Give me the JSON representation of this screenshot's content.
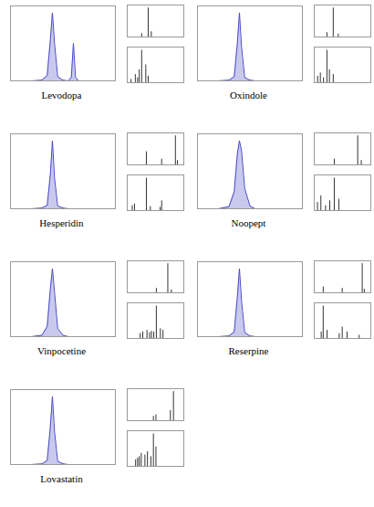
{
  "chart_data": [
    {
      "type": "line",
      "title": "Levodopa",
      "x": [
        0,
        1,
        2,
        3,
        3.5,
        3.8,
        4,
        4.2,
        4.5,
        5,
        5.5,
        5.8,
        6,
        6.2,
        6.5,
        7,
        8,
        9,
        10
      ],
      "values": [
        0,
        0,
        0,
        1,
        8,
        60,
        100,
        55,
        6,
        1,
        0,
        5,
        55,
        5,
        0,
        0,
        0,
        0,
        0
      ],
      "xlim": [
        0,
        10
      ],
      "ylim": [
        0,
        110
      ],
      "color": "#4b4bc8",
      "tick_labels": false
    },
    {
      "type": "bar",
      "x": [
        152,
        198,
        220
      ],
      "values": [
        12,
        100,
        18
      ],
      "xlim": [
        50,
        450
      ],
      "ylim": [
        0,
        110
      ],
      "color": "#333333",
      "tick_labels": false
    },
    {
      "type": "bar",
      "x": [
        77,
        107,
        123,
        135,
        152,
        181,
        198
      ],
      "values": [
        10,
        25,
        15,
        40,
        100,
        55,
        20
      ],
      "xlim": [
        50,
        450
      ],
      "ylim": [
        0,
        110
      ],
      "color": "#333333",
      "tick_labels": false
    },
    {
      "type": "line",
      "title": "Oxindole",
      "x": [
        0,
        1,
        2,
        3,
        3.5,
        3.8,
        4,
        4.2,
        4.5,
        5,
        5.5,
        5.8,
        6,
        6.2,
        6.5,
        7,
        8,
        9,
        10
      ],
      "values": [
        0,
        0,
        0,
        1,
        6,
        55,
        100,
        50,
        5,
        1,
        0,
        0,
        0,
        0,
        0,
        0,
        0,
        0,
        0
      ],
      "xlim": [
        0,
        10
      ],
      "ylim": [
        0,
        110
      ],
      "color": "#4b4bc8",
      "tick_labels": false
    },
    {
      "type": "bar",
      "x": [
        106,
        134,
        156
      ],
      "values": [
        15,
        100,
        10
      ],
      "xlim": [
        50,
        300
      ],
      "ylim": [
        0,
        110
      ],
      "color": "#333333",
      "tick_labels": false
    },
    {
      "type": "bar",
      "x": [
        65,
        77,
        91,
        106,
        117,
        134
      ],
      "values": [
        20,
        30,
        15,
        100,
        40,
        25
      ],
      "xlim": [
        50,
        300
      ],
      "ylim": [
        0,
        110
      ],
      "color": "#333333",
      "tick_labels": false
    },
    {
      "type": "line",
      "title": "Hesperidin",
      "x": [
        0,
        1,
        2,
        3,
        3.5,
        3.8,
        4,
        4.2,
        4.5,
        5,
        5.5,
        5.8,
        6,
        6.2,
        6.5,
        7,
        8,
        9,
        10
      ],
      "values": [
        0,
        0,
        0,
        1,
        5,
        50,
        100,
        45,
        4,
        1,
        0,
        0,
        0,
        0,
        0,
        0,
        0,
        0,
        0
      ],
      "xlim": [
        0,
        10
      ],
      "ylim": [
        0,
        110
      ],
      "color": "#4b4bc8",
      "tick_labels": false
    },
    {
      "type": "bar",
      "x": [
        303,
        465,
        611,
        633
      ],
      "values": [
        45,
        20,
        100,
        15
      ],
      "xlim": [
        100,
        700
      ],
      "ylim": [
        0,
        110
      ],
      "color": "#333333",
      "tick_labels": false
    },
    {
      "type": "bar",
      "x": [
        153,
        177,
        303,
        345,
        449,
        465
      ],
      "values": [
        15,
        20,
        100,
        12,
        10,
        30
      ],
      "xlim": [
        100,
        700
      ],
      "ylim": [
        0,
        110
      ],
      "color": "#333333",
      "tick_labels": false
    },
    {
      "type": "line",
      "title": "Noopept",
      "x": [
        0,
        1,
        2,
        3,
        3.5,
        3.8,
        4,
        4.2,
        4.5,
        5,
        5.5,
        5.8,
        6,
        6.2,
        6.5,
        7,
        8,
        9,
        10
      ],
      "values": [
        0,
        0,
        0,
        3,
        25,
        80,
        100,
        85,
        30,
        4,
        0,
        0,
        0,
        0,
        0,
        0,
        0,
        0,
        0
      ],
      "xlim": [
        0,
        10
      ],
      "ylim": [
        0,
        110
      ],
      "color": "#4b4bc8",
      "tick_labels": false
    },
    {
      "type": "bar",
      "x": [
        174,
        319,
        341
      ],
      "values": [
        20,
        100,
        15
      ],
      "xlim": [
        50,
        400
      ],
      "ylim": [
        0,
        110
      ],
      "color": "#333333",
      "tick_labels": false
    },
    {
      "type": "bar",
      "x": [
        70,
        91,
        120,
        146,
        174,
        202
      ],
      "values": [
        25,
        45,
        15,
        30,
        100,
        35
      ],
      "xlim": [
        50,
        400
      ],
      "ylim": [
        0,
        110
      ],
      "color": "#333333",
      "tick_labels": false
    },
    {
      "type": "line",
      "title": "Vinpocetine",
      "x": [
        0,
        1,
        2,
        3,
        3.5,
        3.8,
        4,
        4.2,
        4.5,
        5,
        5.5,
        5.8,
        6,
        6.2,
        6.5,
        7,
        8,
        9,
        10
      ],
      "values": [
        0,
        0,
        0,
        2,
        15,
        70,
        100,
        65,
        12,
        2,
        0,
        0,
        0,
        0,
        0,
        0,
        0,
        0,
        0
      ],
      "xlim": [
        0,
        10
      ],
      "ylim": [
        0,
        110
      ],
      "color": "#4b4bc8",
      "tick_labels": false
    },
    {
      "type": "bar",
      "x": [
        280,
        351,
        373
      ],
      "values": [
        15,
        100,
        10
      ],
      "xlim": [
        100,
        450
      ],
      "ylim": [
        0,
        110
      ],
      "color": "#333333",
      "tick_labels": false
    },
    {
      "type": "bar",
      "x": [
        180,
        196,
        222,
        238,
        250,
        264,
        280,
        305,
        321
      ],
      "values": [
        15,
        20,
        25,
        18,
        22,
        20,
        100,
        30,
        25
      ],
      "xlim": [
        100,
        450
      ],
      "ylim": [
        0,
        110
      ],
      "color": "#333333",
      "tick_labels": false
    },
    {
      "type": "line",
      "title": "Reserpine",
      "x": [
        0,
        1,
        2,
        3,
        3.5,
        3.8,
        4,
        4.2,
        4.5,
        5,
        5.5,
        5.8,
        6,
        6.2,
        6.5,
        7,
        8,
        9,
        10
      ],
      "values": [
        0,
        0,
        0,
        1,
        7,
        58,
        100,
        52,
        6,
        1,
        0,
        0,
        0,
        0,
        0,
        0,
        0,
        0,
        0
      ],
      "xlim": [
        0,
        10
      ],
      "ylim": [
        0,
        110
      ],
      "color": "#4b4bc8",
      "tick_labels": false
    },
    {
      "type": "bar",
      "x": [
        195,
        397,
        609,
        631
      ],
      "values": [
        20,
        15,
        100,
        12
      ],
      "xlim": [
        100,
        700
      ],
      "ylim": [
        0,
        110
      ],
      "color": "#333333",
      "tick_labels": false
    },
    {
      "type": "bar",
      "x": [
        174,
        195,
        236,
        365,
        397,
        448,
        577
      ],
      "values": [
        20,
        100,
        25,
        15,
        35,
        20,
        10
      ],
      "xlim": [
        100,
        700
      ],
      "ylim": [
        0,
        110
      ],
      "color": "#333333",
      "tick_labels": false
    },
    {
      "type": "line",
      "title": "Lovastatin",
      "x": [
        0,
        1,
        2,
        3,
        3.5,
        3.8,
        4,
        4.2,
        4.5,
        5,
        5.5,
        5.8,
        6,
        6.2,
        6.5,
        7,
        8,
        9,
        10
      ],
      "values": [
        0,
        0,
        0,
        1,
        6,
        55,
        100,
        48,
        5,
        1,
        0,
        0,
        0,
        0,
        0,
        0,
        0,
        0,
        0
      ],
      "xlim": [
        0,
        10
      ],
      "ylim": [
        0,
        110
      ],
      "color": "#4b4bc8",
      "tick_labels": false
    },
    {
      "type": "bar",
      "x": [
        285,
        303,
        405,
        427
      ],
      "values": [
        15,
        20,
        35,
        100
      ],
      "xlim": [
        100,
        500
      ],
      "ylim": [
        0,
        110
      ],
      "color": "#333333",
      "tick_labels": false
    },
    {
      "type": "bar",
      "x": [
        159,
        173,
        185,
        199,
        225,
        243,
        267,
        285,
        303
      ],
      "values": [
        20,
        25,
        30,
        40,
        35,
        45,
        30,
        100,
        60
      ],
      "xlim": [
        100,
        500
      ],
      "ylim": [
        0,
        110
      ],
      "color": "#333333",
      "tick_labels": false
    }
  ]
}
